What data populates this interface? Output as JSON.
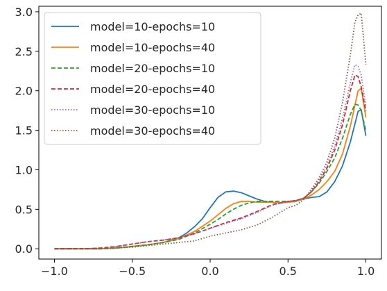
{
  "chart_data": {
    "type": "line",
    "title": "",
    "xlabel": "",
    "ylabel": "",
    "xlim": [
      -1.1,
      1.1
    ],
    "ylim": [
      -0.13,
      3.07
    ],
    "xticks": [
      -1.0,
      -0.5,
      0.0,
      0.5,
      1.0
    ],
    "xtick_labels": [
      "−1.0",
      "−0.5",
      "0.0",
      "0.5",
      "1.0"
    ],
    "yticks": [
      0.0,
      0.5,
      1.0,
      1.5,
      2.0,
      2.5,
      3.0
    ],
    "ytick_labels": [
      "0.0",
      "0.5",
      "1.0",
      "1.5",
      "2.0",
      "2.5",
      "3.0"
    ],
    "grid": false,
    "legend": "top-left",
    "series": [
      {
        "name": "model=10-epochs=10",
        "color": "#1f77b4",
        "style": "solid",
        "x": [
          -1.0,
          -0.9,
          -0.8,
          -0.7,
          -0.6,
          -0.5,
          -0.4,
          -0.3,
          -0.2,
          -0.15,
          -0.1,
          -0.05,
          0.0,
          0.05,
          0.1,
          0.15,
          0.2,
          0.25,
          0.3,
          0.35,
          0.4,
          0.45,
          0.5,
          0.55,
          0.6,
          0.65,
          0.7,
          0.75,
          0.8,
          0.85,
          0.9,
          0.95,
          0.97,
          1.0
        ],
        "y": [
          0.0,
          0.0,
          0.0,
          0.0,
          0.01,
          0.03,
          0.05,
          0.08,
          0.14,
          0.2,
          0.28,
          0.38,
          0.52,
          0.65,
          0.72,
          0.73,
          0.71,
          0.67,
          0.63,
          0.6,
          0.59,
          0.58,
          0.59,
          0.6,
          0.63,
          0.65,
          0.66,
          0.72,
          0.85,
          1.05,
          1.35,
          1.74,
          1.76,
          1.43
        ]
      },
      {
        "name": "model=10-epochs=40",
        "color": "#ff7f0e",
        "style": "solid",
        "x": [
          -1.0,
          -0.9,
          -0.8,
          -0.7,
          -0.6,
          -0.5,
          -0.4,
          -0.3,
          -0.2,
          -0.1,
          0.0,
          0.05,
          0.1,
          0.15,
          0.2,
          0.25,
          0.3,
          0.35,
          0.4,
          0.45,
          0.5,
          0.55,
          0.6,
          0.65,
          0.7,
          0.75,
          0.8,
          0.85,
          0.9,
          0.95,
          0.97,
          1.0
        ],
        "y": [
          0.0,
          0.0,
          0.0,
          0.0,
          0.01,
          0.03,
          0.05,
          0.08,
          0.13,
          0.22,
          0.35,
          0.43,
          0.51,
          0.57,
          0.6,
          0.6,
          0.59,
          0.59,
          0.59,
          0.58,
          0.59,
          0.6,
          0.63,
          0.68,
          0.75,
          0.85,
          0.98,
          1.2,
          1.55,
          2.0,
          2.03,
          1.66
        ]
      },
      {
        "name": "model=20-epochs=10",
        "color": "#2ca02c",
        "style": "dashed",
        "x": [
          -1.0,
          -0.9,
          -0.8,
          -0.7,
          -0.6,
          -0.5,
          -0.4,
          -0.3,
          -0.2,
          -0.1,
          0.0,
          0.05,
          0.1,
          0.15,
          0.2,
          0.25,
          0.3,
          0.35,
          0.4,
          0.45,
          0.5,
          0.55,
          0.6,
          0.65,
          0.7,
          0.75,
          0.8,
          0.85,
          0.9,
          0.93,
          0.95,
          0.97,
          1.0
        ],
        "y": [
          0.0,
          0.0,
          0.0,
          0.0,
          0.01,
          0.03,
          0.05,
          0.08,
          0.12,
          0.2,
          0.31,
          0.37,
          0.44,
          0.5,
          0.55,
          0.58,
          0.6,
          0.6,
          0.6,
          0.6,
          0.6,
          0.61,
          0.64,
          0.72,
          0.83,
          0.98,
          1.15,
          1.4,
          1.7,
          1.83,
          1.82,
          1.75,
          1.49
        ]
      },
      {
        "name": "model=20-epochs=40",
        "color": "#d62728",
        "style": "dashed",
        "x": [
          -1.0,
          -0.9,
          -0.8,
          -0.7,
          -0.6,
          -0.5,
          -0.4,
          -0.3,
          -0.2,
          -0.1,
          0.0,
          0.1,
          0.2,
          0.3,
          0.4,
          0.5,
          0.55,
          0.6,
          0.65,
          0.7,
          0.75,
          0.8,
          0.85,
          0.9,
          0.93,
          0.95,
          0.97,
          1.0
        ],
        "y": [
          0.0,
          0.0,
          0.0,
          0.01,
          0.03,
          0.06,
          0.09,
          0.11,
          0.14,
          0.19,
          0.26,
          0.33,
          0.39,
          0.47,
          0.56,
          0.6,
          0.61,
          0.64,
          0.72,
          0.85,
          1.02,
          1.25,
          1.57,
          2.0,
          2.2,
          2.18,
          2.05,
          1.74
        ]
      },
      {
        "name": "model=30-epochs=10",
        "color": "#9467bd",
        "style": "dotted",
        "x": [
          -1.0,
          -0.9,
          -0.8,
          -0.7,
          -0.6,
          -0.5,
          -0.4,
          -0.3,
          -0.2,
          -0.1,
          0.0,
          0.1,
          0.2,
          0.3,
          0.4,
          0.5,
          0.55,
          0.6,
          0.65,
          0.7,
          0.75,
          0.8,
          0.85,
          0.9,
          0.93,
          0.95,
          0.97,
          1.0
        ],
        "y": [
          0.0,
          0.0,
          0.0,
          0.01,
          0.03,
          0.06,
          0.09,
          0.11,
          0.14,
          0.19,
          0.26,
          0.32,
          0.38,
          0.46,
          0.55,
          0.6,
          0.61,
          0.64,
          0.73,
          0.87,
          1.05,
          1.3,
          1.65,
          2.1,
          2.33,
          2.31,
          2.2,
          1.8
        ]
      },
      {
        "name": "model=30-epochs=40",
        "color": "#8c564b",
        "style": "dotted",
        "x": [
          -1.0,
          -0.9,
          -0.8,
          -0.7,
          -0.6,
          -0.5,
          -0.4,
          -0.3,
          -0.2,
          -0.1,
          0.0,
          0.1,
          0.2,
          0.3,
          0.4,
          0.5,
          0.55,
          0.6,
          0.65,
          0.7,
          0.75,
          0.8,
          0.85,
          0.9,
          0.93,
          0.95,
          0.97,
          1.0
        ],
        "y": [
          0.0,
          0.0,
          0.0,
          0.0,
          0.01,
          0.02,
          0.04,
          0.06,
          0.08,
          0.1,
          0.16,
          0.2,
          0.24,
          0.3,
          0.4,
          0.52,
          0.55,
          0.62,
          0.75,
          0.9,
          1.1,
          1.4,
          1.85,
          2.45,
          2.87,
          2.96,
          2.98,
          2.33
        ]
      }
    ]
  }
}
